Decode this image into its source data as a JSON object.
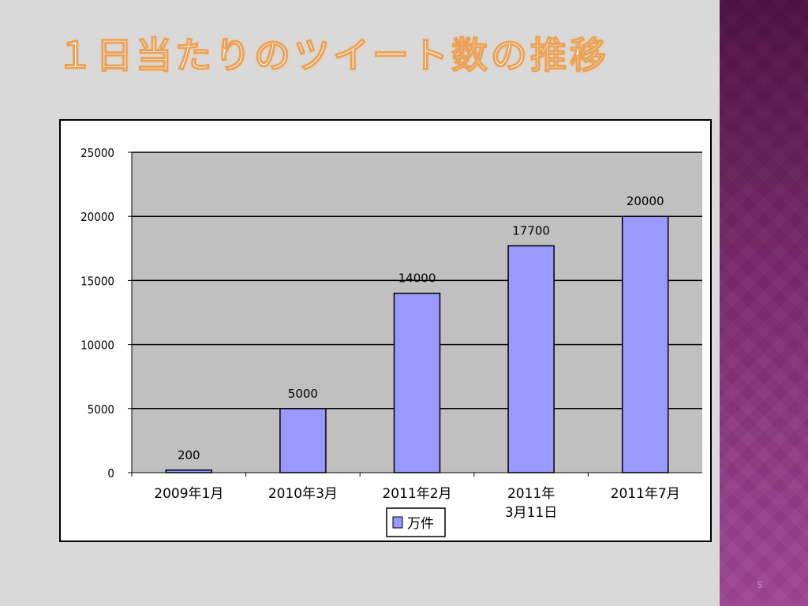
{
  "slide": {
    "title": "１日当たりのツイート数の推移",
    "page_number": "5"
  },
  "chart_data": {
    "type": "bar",
    "categories": [
      "2009年1月",
      "2010年3月",
      "2011年2月",
      "2011年\n3月11日",
      "2011年7月"
    ],
    "series": [
      {
        "name": "万件",
        "values": [
          200,
          5000,
          14000,
          17700,
          20000
        ]
      }
    ],
    "ylim": [
      0,
      25000
    ],
    "yticks": [
      0,
      5000,
      10000,
      15000,
      20000,
      25000
    ],
    "data_labels": [
      "200",
      "5000",
      "14000",
      "17700",
      "20000"
    ],
    "grid": true,
    "legend": "bottom",
    "colors": {
      "bar_fill": "#9999ff",
      "bar_stroke": "#000000",
      "plot_background": "#c0c0c0"
    }
  }
}
